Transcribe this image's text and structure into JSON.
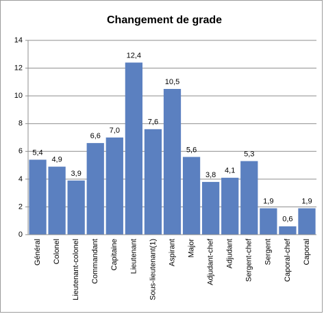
{
  "chart_data": {
    "type": "bar",
    "title": "Changement de grade",
    "categories": [
      "Général",
      "Colonel",
      "Lieutenant-colonel",
      "Commandant",
      "Capitaine",
      "Lieutenant",
      "Sous-lieutenant(1)",
      "Aspirant",
      "Major",
      "Adjudant-chef",
      "Adjudant",
      "Sergent-chef",
      "Sergent",
      "Caporal-chef",
      "Caporal"
    ],
    "values": [
      5.4,
      4.9,
      3.9,
      6.6,
      7.0,
      12.4,
      7.6,
      10.5,
      5.6,
      3.8,
      4.1,
      5.3,
      1.9,
      0.6,
      1.9
    ],
    "value_labels": [
      "5,4",
      "4,9",
      "3,9",
      "6,6",
      "7,0",
      "12,4",
      "7,6",
      "10,5",
      "5,6",
      "3,8",
      "4,1",
      "5,3",
      "1,9",
      "0,6",
      "1,9"
    ],
    "color": "#5b80c0",
    "ylim": [
      0,
      14
    ],
    "yticks": [
      0,
      2,
      4,
      6,
      8,
      10,
      12,
      14
    ],
    "grid": true
  }
}
